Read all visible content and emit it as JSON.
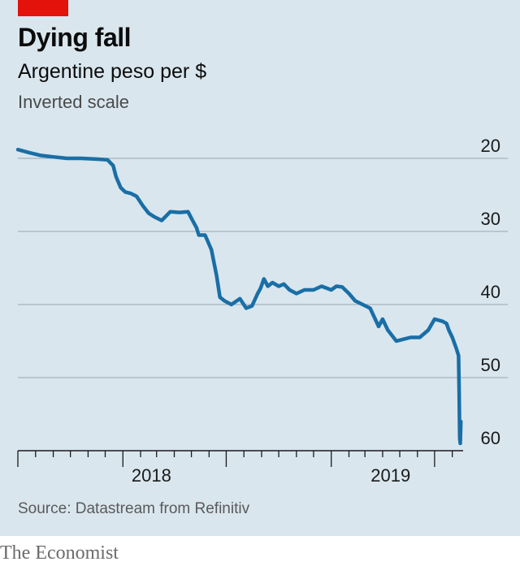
{
  "header": {
    "title": "Dying fall",
    "subtitle": "Argentine peso per $",
    "scale_note": "Inverted scale"
  },
  "footer": {
    "source": "Source: Datastream from Refinitiv",
    "brand": "The Economist"
  },
  "colors": {
    "line": "#1a6ea6",
    "panel": "#d9e6ee",
    "accent": "#e3120b",
    "grid": "#9aa7b0"
  },
  "chart_data": {
    "type": "line",
    "title": "Dying fall",
    "subtitle": "Argentine peso per $",
    "ylabel": "",
    "xlabel": "",
    "y_inverted": true,
    "ylim": [
      20,
      60
    ],
    "yticks": [
      "20",
      "30",
      "40",
      "50",
      "60"
    ],
    "xlim": [
      "2017-07-01",
      "2019-08-20"
    ],
    "x_tick_labels": [
      "2018",
      "2019"
    ],
    "grid": true,
    "series": [
      {
        "x": [
          "2017-07-01",
          "2017-07-20",
          "2017-08-10",
          "2017-09-01",
          "2017-09-25",
          "2017-10-20",
          "2017-11-15",
          "2017-12-05",
          "2017-12-15",
          "2017-12-20",
          "2017-12-28",
          "2018-01-05",
          "2018-01-15",
          "2018-01-25",
          "2018-02-05",
          "2018-02-15",
          "2018-02-25",
          "2018-03-10",
          "2018-03-25",
          "2018-04-10",
          "2018-04-25",
          "2018-05-03",
          "2018-05-10",
          "2018-05-14",
          "2018-05-25",
          "2018-06-05",
          "2018-06-14",
          "2018-06-20",
          "2018-06-28",
          "2018-07-10",
          "2018-07-25",
          "2018-08-05",
          "2018-08-15",
          "2018-08-25",
          "2018-08-30",
          "2018-09-05",
          "2018-09-12",
          "2018-09-20",
          "2018-10-01",
          "2018-10-10",
          "2018-10-20",
          "2018-11-01",
          "2018-11-15",
          "2018-12-01",
          "2018-12-15",
          "2019-01-01",
          "2019-01-10",
          "2019-01-20",
          "2019-02-01",
          "2019-02-12",
          "2019-02-25",
          "2019-03-10",
          "2019-03-25",
          "2019-04-01",
          "2019-04-10",
          "2019-04-20",
          "2019-04-25",
          "2019-05-05",
          "2019-05-20",
          "2019-06-05",
          "2019-06-20",
          "2019-07-01",
          "2019-07-15",
          "2019-07-22",
          "2019-07-26",
          "2019-08-01",
          "2019-08-08",
          "2019-08-12",
          "2019-08-13",
          "2019-08-14",
          "2019-08-15",
          "2019-08-16"
        ],
        "values": [
          18.8,
          19.2,
          19.6,
          19.8,
          20.0,
          20.0,
          20.1,
          20.2,
          21.0,
          22.5,
          24.0,
          24.6,
          24.8,
          25.2,
          26.5,
          27.5,
          28.0,
          28.5,
          27.3,
          27.4,
          27.3,
          28.5,
          29.5,
          30.5,
          30.5,
          32.5,
          36.0,
          39.0,
          39.5,
          40.0,
          39.2,
          40.5,
          40.2,
          38.5,
          37.8,
          36.5,
          37.5,
          37.0,
          37.5,
          37.2,
          38.0,
          38.5,
          38.0,
          38.0,
          37.5,
          38.0,
          37.5,
          37.6,
          38.5,
          39.5,
          40.0,
          40.5,
          43.0,
          42.0,
          43.5,
          44.5,
          45.0,
          44.8,
          44.5,
          44.5,
          43.5,
          42.0,
          42.3,
          42.6,
          43.5,
          44.5,
          46.0,
          47.0,
          52.0,
          58.3,
          59.0,
          56.0
        ],
        "comment_no_visual": "Daily exchange rate, inverted axis (higher peso per $ plotted lower)"
      }
    ]
  }
}
